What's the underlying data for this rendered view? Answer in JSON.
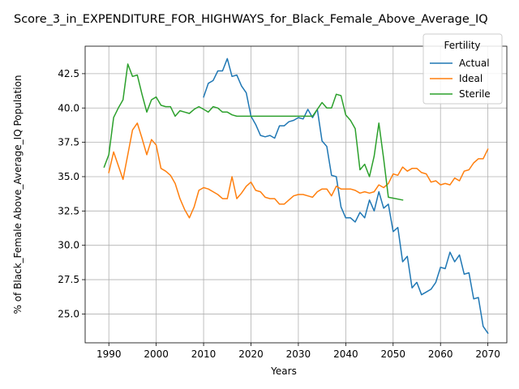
{
  "chart_data": {
    "type": "line",
    "title": "Score_3_in_EXPENDITURE_FOR_HIGHWAYS_for_Black_Female_Above_Average_IQ",
    "xlabel": "Years",
    "ylabel": "% of Black_Female Above_Average_IQ Population",
    "xlim": [
      1985,
      2074
    ],
    "ylim": [
      22.9,
      44.5
    ],
    "xticks": [
      1990,
      2000,
      2010,
      2020,
      2030,
      2040,
      2050,
      2060,
      2070
    ],
    "xtick_labels": [
      "1990",
      "2000",
      "2010",
      "2020",
      "2030",
      "2040",
      "2050",
      "2060",
      "2070"
    ],
    "yticks": [
      25.0,
      27.5,
      30.0,
      32.5,
      35.0,
      37.5,
      40.0,
      42.5
    ],
    "ytick_labels": [
      "25.0",
      "27.5",
      "30.0",
      "32.5",
      "35.0",
      "37.5",
      "40.0",
      "42.5"
    ],
    "grid": true,
    "legend": {
      "title": "Fertility",
      "placement": "top-right"
    },
    "series": [
      {
        "name": "Actual",
        "color": "#1f77b4",
        "x": [
          2010,
          2011,
          2012,
          2013,
          2014,
          2015,
          2016,
          2017,
          2018,
          2019,
          2020,
          2021,
          2022,
          2023,
          2024,
          2025,
          2026,
          2027,
          2028,
          2029,
          2030,
          2031,
          2032,
          2033,
          2034,
          2035,
          2036,
          2037,
          2038,
          2039,
          2040,
          2041,
          2042,
          2043,
          2044,
          2045,
          2046,
          2047,
          2048,
          2049,
          2050,
          2051,
          2052,
          2053,
          2054,
          2055,
          2056,
          2057,
          2058,
          2059,
          2060,
          2061,
          2062,
          2063,
          2064,
          2065,
          2066,
          2067,
          2068,
          2069,
          2070
        ],
        "y": [
          40.8,
          41.8,
          42.0,
          42.7,
          42.7,
          43.6,
          42.3,
          42.4,
          41.6,
          41.1,
          39.4,
          38.8,
          38.0,
          37.9,
          38.0,
          37.8,
          38.7,
          38.7,
          39.0,
          39.1,
          39.3,
          39.2,
          39.9,
          39.3,
          39.9,
          37.6,
          37.2,
          35.1,
          35.0,
          32.8,
          32.0,
          32.0,
          31.7,
          32.4,
          32.0,
          33.3,
          32.5,
          33.9,
          32.7,
          33.0,
          31.0,
          31.3,
          28.8,
          29.2,
          26.9,
          27.3,
          26.4,
          26.6,
          26.8,
          27.3,
          28.4,
          28.3,
          29.5,
          28.8,
          29.3,
          27.9,
          28.0,
          26.1,
          26.2,
          24.1,
          23.6
        ]
      },
      {
        "name": "Ideal",
        "color": "#ff7f0e",
        "x": [
          1990,
          1991,
          1992,
          1993,
          1994,
          1995,
          1996,
          1997,
          1998,
          1999,
          2000,
          2001,
          2002,
          2003,
          2004,
          2005,
          2006,
          2007,
          2008,
          2009,
          2010,
          2011,
          2012,
          2013,
          2014,
          2015,
          2016,
          2017,
          2018,
          2019,
          2020,
          2021,
          2022,
          2023,
          2024,
          2025,
          2026,
          2027,
          2028,
          2029,
          2030,
          2031,
          2032,
          2033,
          2034,
          2035,
          2036,
          2037,
          2038,
          2039,
          2040,
          2041,
          2042,
          2043,
          2044,
          2045,
          2046,
          2047,
          2048,
          2049,
          2050,
          2051,
          2052,
          2053,
          2054,
          2055,
          2056,
          2057,
          2058,
          2059,
          2060,
          2061,
          2062,
          2063,
          2064,
          2065,
          2066,
          2067,
          2068,
          2069,
          2070
        ],
        "y": [
          35.3,
          36.8,
          35.8,
          34.8,
          36.6,
          38.4,
          38.9,
          37.8,
          36.6,
          37.7,
          37.3,
          35.6,
          35.4,
          35.1,
          34.5,
          33.4,
          32.6,
          32.0,
          32.8,
          34.0,
          34.2,
          34.1,
          33.9,
          33.7,
          33.4,
          33.4,
          35.0,
          33.4,
          33.8,
          34.3,
          34.6,
          34.0,
          33.9,
          33.5,
          33.4,
          33.4,
          33.0,
          33.0,
          33.3,
          33.6,
          33.7,
          33.7,
          33.6,
          33.5,
          33.9,
          34.1,
          34.1,
          33.6,
          34.3,
          34.1,
          34.1,
          34.1,
          34.0,
          33.8,
          33.9,
          33.8,
          33.9,
          34.4,
          34.2,
          34.5,
          35.2,
          35.1,
          35.7,
          35.4,
          35.6,
          35.6,
          35.3,
          35.2,
          34.6,
          34.7,
          34.4,
          34.5,
          34.4,
          34.9,
          34.7,
          35.4,
          35.5,
          36.0,
          36.3,
          36.3,
          37.0
        ]
      },
      {
        "name": "Sterile",
        "color": "#2ca02c",
        "x": [
          1989,
          1990,
          1991,
          1992,
          1993,
          1994,
          1995,
          1996,
          1997,
          1998,
          1999,
          2000,
          2001,
          2002,
          2003,
          2004,
          2005,
          2006,
          2007,
          2008,
          2009,
          2010,
          2011,
          2012,
          2013,
          2014,
          2015,
          2016,
          2017,
          2018,
          2019,
          2020,
          2021,
          2022,
          2023,
          2024,
          2025,
          2026,
          2027,
          2028,
          2029,
          2030,
          2031,
          2032,
          2033,
          2034,
          2035,
          2036,
          2037,
          2038,
          2039,
          2040,
          2041,
          2042,
          2043,
          2044,
          2045,
          2046,
          2047,
          2048,
          2049,
          2052
        ],
        "y": [
          35.7,
          36.6,
          39.3,
          40.0,
          40.6,
          43.2,
          42.3,
          42.4,
          41.0,
          39.7,
          40.6,
          40.8,
          40.2,
          40.1,
          40.1,
          39.4,
          39.8,
          39.7,
          39.6,
          39.9,
          40.1,
          39.9,
          39.7,
          40.1,
          40.0,
          39.7,
          39.7,
          39.5,
          39.4,
          39.4,
          39.4,
          39.4,
          39.4,
          39.4,
          39.4,
          39.4,
          39.4,
          39.4,
          39.4,
          39.4,
          39.4,
          39.4,
          39.4,
          39.4,
          39.4,
          39.9,
          40.4,
          40.0,
          40.0,
          41.0,
          40.9,
          39.5,
          39.1,
          38.5,
          35.5,
          35.9,
          35.0,
          36.5,
          38.9,
          36.3,
          33.5,
          33.3
        ]
      }
    ]
  }
}
